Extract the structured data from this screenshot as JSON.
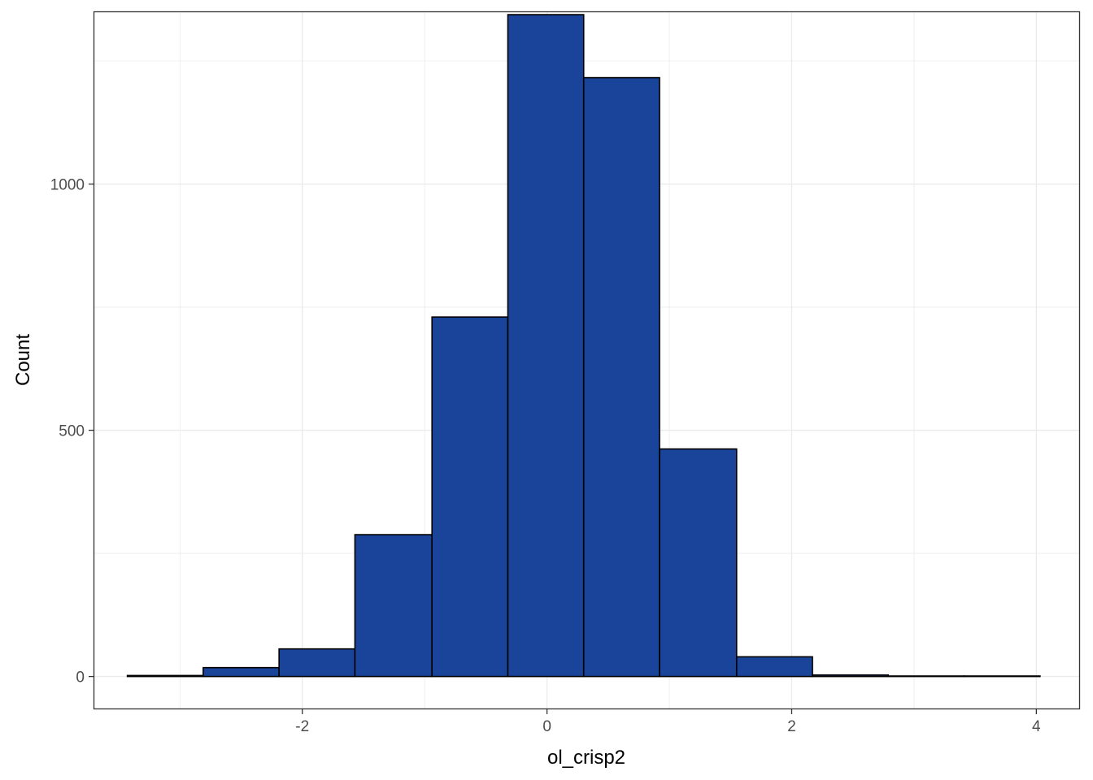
{
  "chart_data": {
    "type": "bar",
    "subtype": "histogram",
    "xlabel": "ol_crisp2",
    "ylabel": "Count",
    "xlim": [
      -3.7,
      4.35
    ],
    "ylim": [
      -65,
      1349
    ],
    "x_ticks": [
      -2,
      0,
      2,
      4
    ],
    "x_tick_labels": [
      "-2",
      "0",
      "2",
      "4"
    ],
    "y_ticks": [
      0,
      500,
      1000
    ],
    "y_tick_labels": [
      "0",
      "500",
      "1000"
    ],
    "x_minor_grid": [
      -3,
      -1,
      1,
      3
    ],
    "y_minor_grid": [
      250,
      750,
      1250
    ],
    "grid": true,
    "bins": [
      {
        "x0": -3.43,
        "x1": -2.81,
        "count": 2
      },
      {
        "x0": -2.81,
        "x1": -2.19,
        "count": 18
      },
      {
        "x0": -2.19,
        "x1": -1.57,
        "count": 56
      },
      {
        "x0": -1.57,
        "x1": -0.94,
        "count": 288
      },
      {
        "x0": -0.94,
        "x1": -0.32,
        "count": 730
      },
      {
        "x0": -0.32,
        "x1": 0.3,
        "count": 1344
      },
      {
        "x0": 0.3,
        "x1": 0.92,
        "count": 1216
      },
      {
        "x0": 0.92,
        "x1": 1.55,
        "count": 462
      },
      {
        "x0": 1.55,
        "x1": 2.17,
        "count": 40
      },
      {
        "x0": 2.17,
        "x1": 2.79,
        "count": 3
      },
      {
        "x0": 2.79,
        "x1": 3.41,
        "count": 1
      },
      {
        "x0": 3.41,
        "x1": 4.03,
        "count": 1
      }
    ],
    "colors": {
      "bar_fill": "#1a4499",
      "bar_stroke": "#000000",
      "grid": "#ebebeb",
      "panel_border": "#333333",
      "tick_text": "#4d4d4d"
    }
  }
}
